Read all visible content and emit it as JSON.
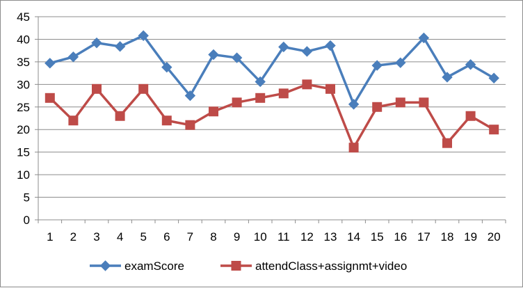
{
  "chart_data": {
    "type": "line",
    "title": "",
    "xlabel": "",
    "ylabel": "",
    "categories": [
      "1",
      "2",
      "3",
      "4",
      "5",
      "6",
      "7",
      "8",
      "9",
      "10",
      "11",
      "12",
      "13",
      "14",
      "15",
      "16",
      "17",
      "18",
      "19",
      "20"
    ],
    "ylim": [
      0,
      45
    ],
    "yticks": [
      0,
      5,
      10,
      15,
      20,
      25,
      30,
      35,
      40,
      45
    ],
    "yticks_labels": [
      "0",
      "5",
      "10",
      "15",
      "20",
      "25",
      "30",
      "35",
      "40",
      "45"
    ],
    "grid": {
      "horizontal": true,
      "vertical": false
    },
    "legend": {
      "placement": "bottom"
    },
    "series": [
      {
        "name": "examScore",
        "color": "#4a7ebb",
        "marker": "diamond",
        "values": [
          34.7,
          36.1,
          39.2,
          38.4,
          40.8,
          33.8,
          27.5,
          36.6,
          35.9,
          30.6,
          38.3,
          37.3,
          38.6,
          25.6,
          34.2,
          34.8,
          40.3,
          31.6,
          34.4,
          31.4
        ]
      },
      {
        "name": "attendClass+assignmt+video",
        "color": "#be4b48",
        "marker": "square",
        "values": [
          27,
          22,
          29,
          23,
          29,
          22,
          21,
          24,
          26,
          27,
          28,
          30,
          29,
          16,
          25,
          26,
          26,
          17,
          23,
          20
        ]
      }
    ]
  }
}
